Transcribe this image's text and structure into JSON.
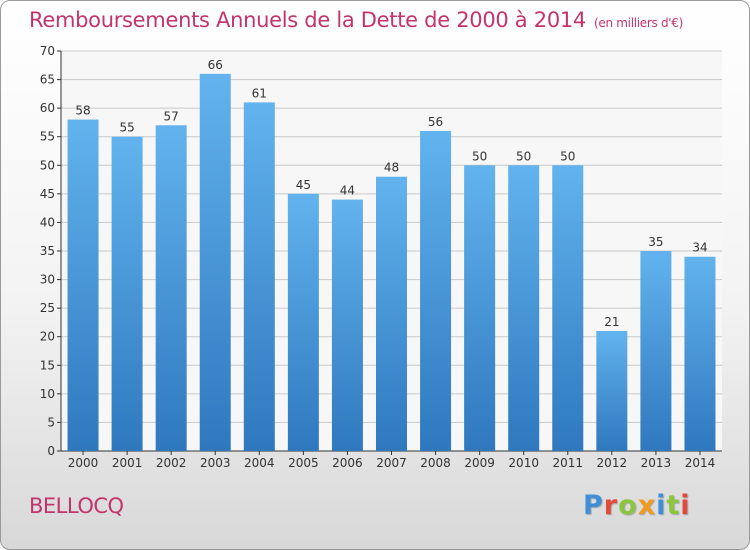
{
  "title": "Remboursements Annuels de la Dette de 2000 à 2014",
  "subtitle": "(en milliers d'€)",
  "commune": "BELLOCQ",
  "brand": {
    "letters": [
      {
        "ch": "P",
        "color": "#3f8fd8"
      },
      {
        "ch": "r",
        "color": "#e24b3a"
      },
      {
        "ch": "o",
        "color": "#8cc63f"
      },
      {
        "ch": "x",
        "color": "#f29a1f"
      },
      {
        "ch": "i",
        "color": "#3f8fd8"
      },
      {
        "ch": "t",
        "color": "#8cc63f"
      },
      {
        "ch": "i",
        "color": "#e24b3a"
      }
    ]
  },
  "colors": {
    "title": "#c4346c",
    "bar_top": "#62b3ee",
    "bar_bottom": "#2f78be",
    "grid": "#c9c9c9",
    "axis": "#333333"
  },
  "chart_data": {
    "type": "bar",
    "categories": [
      "2000",
      "2001",
      "2002",
      "2003",
      "2004",
      "2005",
      "2006",
      "2007",
      "2008",
      "2009",
      "2010",
      "2011",
      "2012",
      "2013",
      "2014"
    ],
    "values": [
      58,
      55,
      57,
      66,
      61,
      45,
      44,
      48,
      56,
      50,
      50,
      50,
      21,
      35,
      34
    ],
    "ylim": [
      0,
      70
    ],
    "yticks": [
      0,
      5,
      10,
      15,
      20,
      25,
      30,
      35,
      40,
      45,
      50,
      55,
      60,
      65,
      70
    ],
    "grid": true,
    "data_labels": true
  }
}
